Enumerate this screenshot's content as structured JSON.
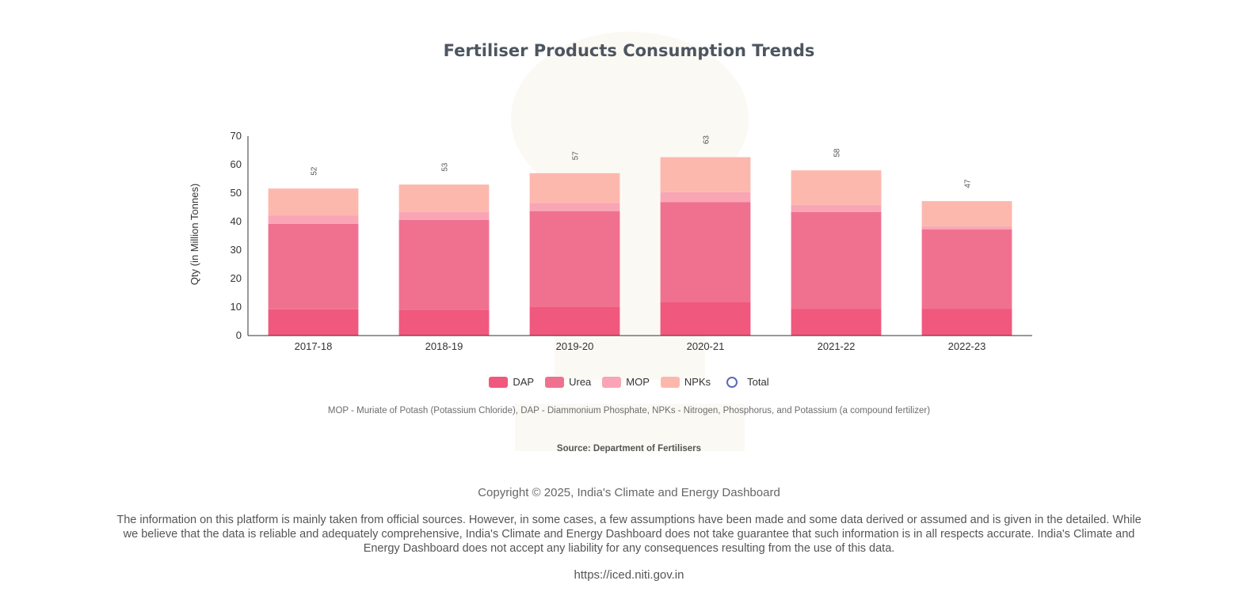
{
  "page": {
    "title": "Fertiliser Products Consumption Trends",
    "note": "MOP - Muriate of Potash (Potassium Chloride),  DAP - Diammonium Phosphate,  NPKs - Nitrogen, Phosphorus, and Potassium (a compound fertilizer)",
    "source": "Source: Department of Fertilisers",
    "copyright": "Copyright © 2025, India's Climate and Energy Dashboard",
    "disclaimer": "The information on this platform is mainly taken from official sources. However, in some cases, a few assumptions have been made and some data derived or assumed and is given in the detailed. While we believe that the data is reliable and adequately comprehensive, India's Climate and Energy Dashboard does not take guarantee that such information is in all respects accurate. India's Climate and Energy Dashboard does not accept any liability for any consequences resulting from the use of this data.",
    "url": "https://iced.niti.gov.in"
  },
  "legend": [
    {
      "label": "DAP",
      "color": "#f0587d"
    },
    {
      "label": "Urea",
      "color": "#f0718f"
    },
    {
      "label": "MOP",
      "color": "#f9a5b5"
    },
    {
      "label": "NPKs",
      "color": "#fdb8ae"
    },
    {
      "label": "Total",
      "color": "#5b6bb5"
    }
  ],
  "chart_data": {
    "type": "bar",
    "stacked": true,
    "categories": [
      "2017-18",
      "2018-19",
      "2019-20",
      "2020-21",
      "2021-22",
      "2022-23"
    ],
    "series": [
      {
        "name": "DAP",
        "color": "#f0587d",
        "values": [
          9.2,
          9.0,
          10.2,
          11.9,
          9.3,
          9.3
        ]
      },
      {
        "name": "Urea",
        "color": "#f0718f",
        "values": [
          30.0,
          31.6,
          33.5,
          35.0,
          34.1,
          28.0
        ]
      },
      {
        "name": "MOP",
        "color": "#f9a5b5",
        "values": [
          3.0,
          2.8,
          2.8,
          3.4,
          2.5,
          1.0
        ]
      },
      {
        "name": "NPKs",
        "color": "#fdb8ae",
        "values": [
          9.4,
          9.6,
          10.5,
          12.3,
          12.1,
          8.9
        ]
      }
    ],
    "totals": [
      52,
      53,
      57,
      63,
      58,
      47
    ],
    "total_labels": [
      "52",
      "53",
      "57",
      "63",
      "58",
      "47"
    ],
    "ylabel": "Qty (in Million Tonnes)",
    "xlabel": "",
    "ylim": [
      0,
      70
    ],
    "yticks": [
      "0",
      "10",
      "20",
      "30",
      "40",
      "50",
      "60",
      "70"
    ],
    "grid": false,
    "legend_position": "bottom"
  }
}
